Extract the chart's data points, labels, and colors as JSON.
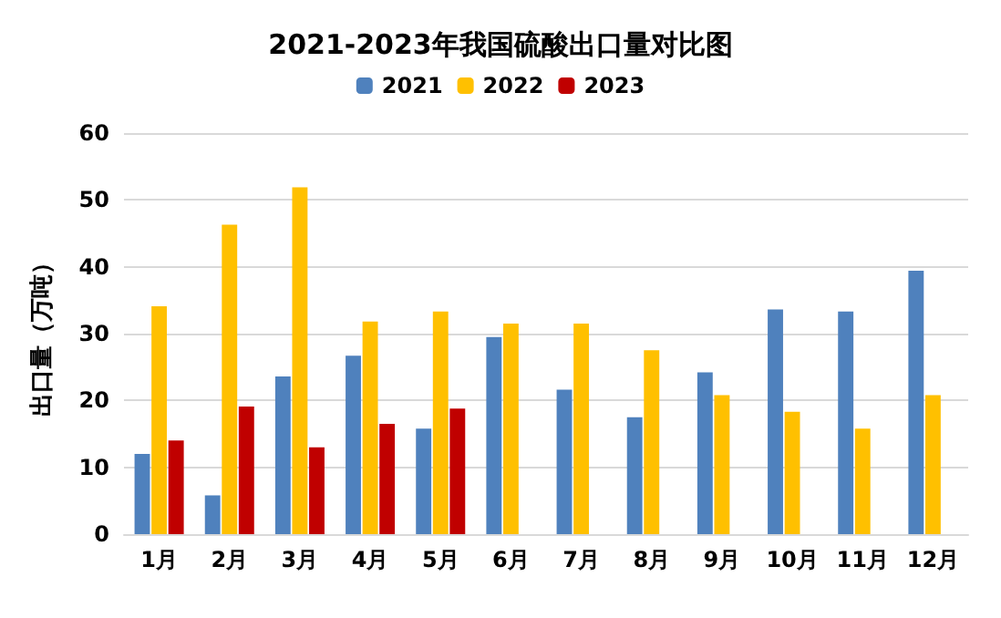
{
  "chart_data": {
    "type": "bar",
    "title": "2021-2023年我国硫酸出口量对比图",
    "ylabel": "出口量（万吨）",
    "categories": [
      "1月",
      "2月",
      "3月",
      "4月",
      "5月",
      "6月",
      "7月",
      "8月",
      "9月",
      "10月",
      "11月",
      "12月"
    ],
    "series": [
      {
        "name": "2021",
        "color": "#4f81bd",
        "values": [
          12,
          5.8,
          23.6,
          26.7,
          15.8,
          29.5,
          21.6,
          17.5,
          24.2,
          33.6,
          33.3,
          39.4
        ]
      },
      {
        "name": "2022",
        "color": "#ffc000",
        "values": [
          34.1,
          46.3,
          51.9,
          31.8,
          33.3,
          31.5,
          31.5,
          27.5,
          20.8,
          18.3,
          15.8,
          20.8
        ]
      },
      {
        "name": "2023",
        "color": "#c00000",
        "values": [
          14,
          19.1,
          13,
          16.5,
          18.8,
          null,
          null,
          null,
          null,
          null,
          null,
          null
        ]
      }
    ],
    "ylim": [
      0,
      60
    ],
    "yticks": [
      0,
      10,
      20,
      30,
      40,
      50,
      60
    ],
    "grid": "y",
    "legend": "top"
  }
}
